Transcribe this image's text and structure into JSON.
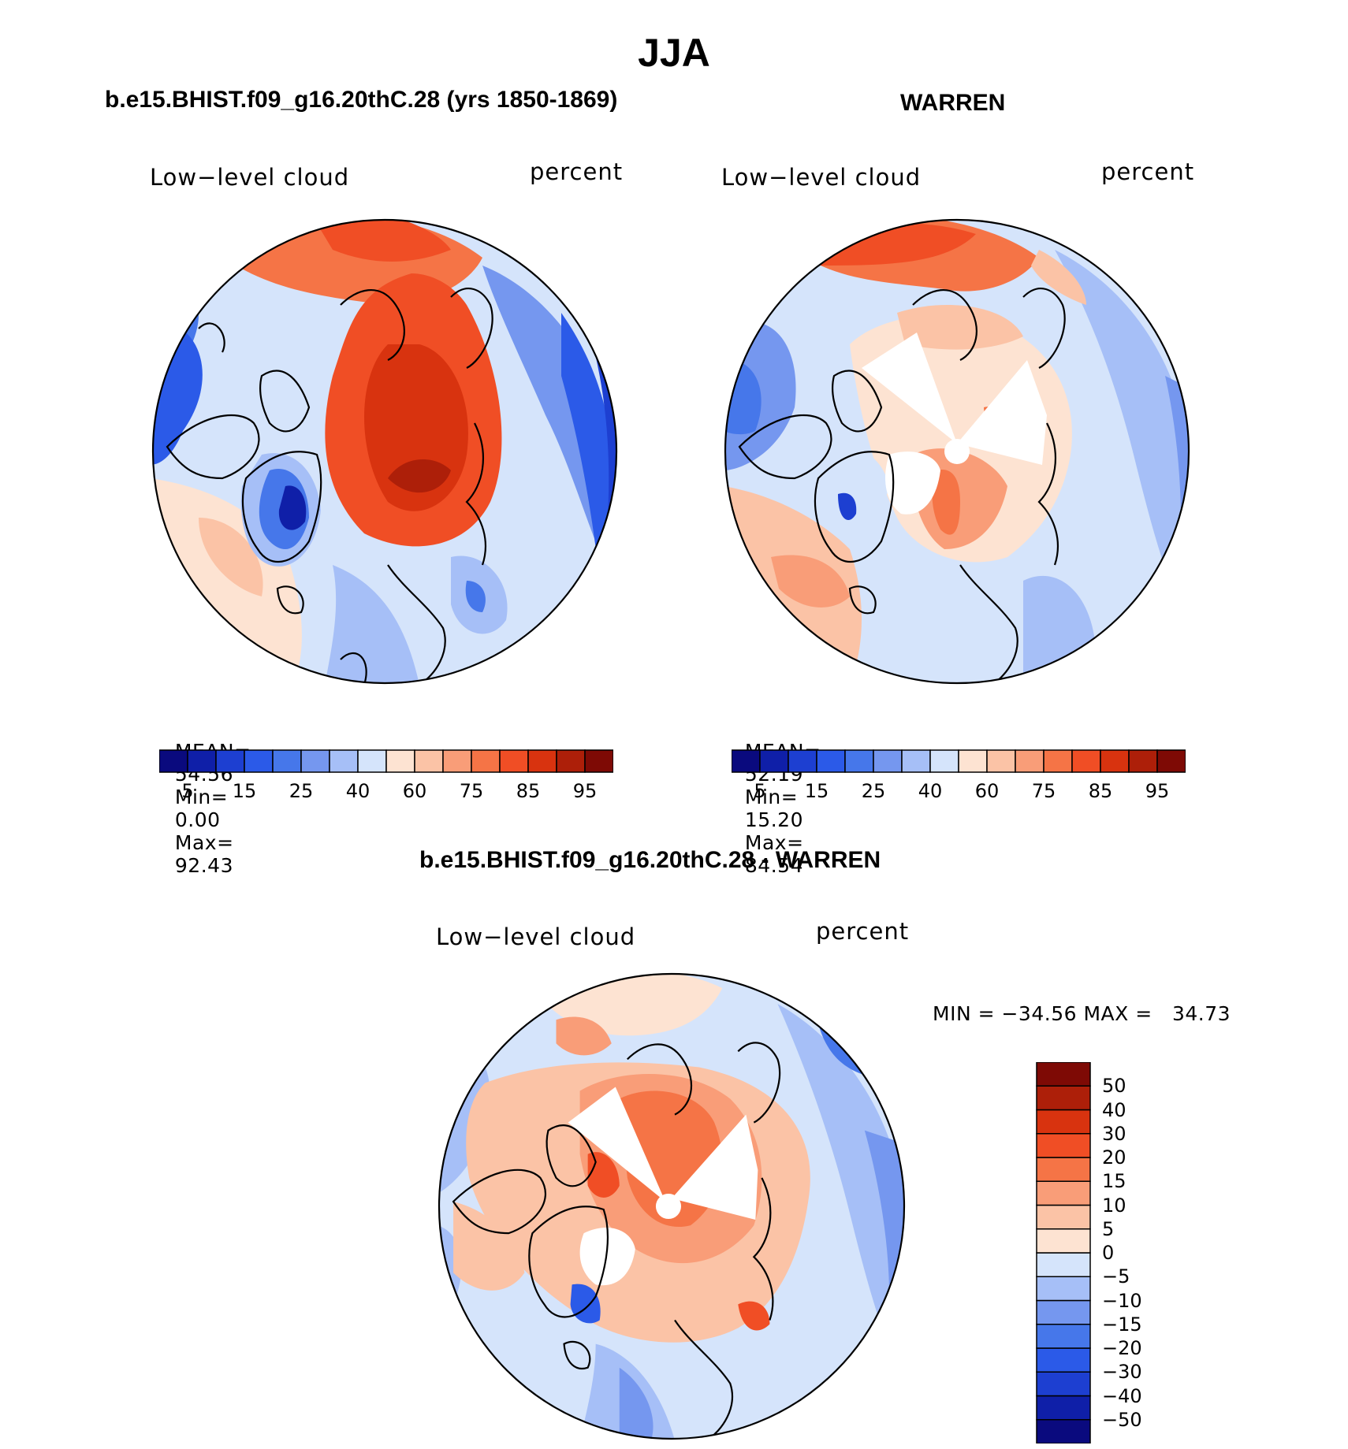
{
  "figure": {
    "main_title": "JJA"
  },
  "panels": [
    {
      "id": "model",
      "title": "b.e15.BHIST.f09_g16.20thC.28 (yrs 1850-1869)",
      "left_label": "Low−level cloud",
      "right_label": "percent",
      "stats": {
        "mean_label": "MEAN=",
        "mean": "54.56",
        "min_label": "Min=",
        "min": "0.00",
        "max_label": "Max=",
        "max": "92.43"
      }
    },
    {
      "id": "obs",
      "title": "WARREN",
      "left_label": "Low−level cloud",
      "right_label": "percent",
      "stats": {
        "mean_label": "MEAN=",
        "mean": "52.19",
        "min_label": "Min=",
        "min": "15.20",
        "max_label": "Max=",
        "max": "84.54"
      }
    },
    {
      "id": "diff",
      "title": "b.e15.BHIST.f09_g16.20thC.28 - WARREN",
      "left_label": "Low−level cloud",
      "right_label": "percent",
      "stats": {
        "text": "MIN = −34.56 MAX =   34.73"
      }
    }
  ],
  "colorbars": {
    "absolute": {
      "colors": [
        "#0a0a7e",
        "#0f1fa8",
        "#1d3fd1",
        "#2b5ae8",
        "#4677ea",
        "#7597ef",
        "#a6bff7",
        "#d5e4fb",
        "#fde3d2",
        "#fbc3a6",
        "#f99d78",
        "#f57446",
        "#f04e25",
        "#d8330f",
        "#ad1f09",
        "#7e0a05"
      ],
      "ticks": [
        "5",
        "15",
        "25",
        "40",
        "60",
        "75",
        "85",
        "95"
      ]
    },
    "difference": {
      "colors": [
        "#0a0a7e",
        "#0f1fa8",
        "#1d3fd1",
        "#2b5ae8",
        "#4677ea",
        "#7597ef",
        "#a6bff7",
        "#d5e4fb",
        "#fde3d2",
        "#fbc3a6",
        "#f99d78",
        "#f57446",
        "#f04e25",
        "#d8330f",
        "#ad1f09",
        "#7e0a05"
      ],
      "ticks": [
        "50",
        "40",
        "30",
        "20",
        "15",
        "10",
        "5",
        "0",
        "−5",
        "−10",
        "−15",
        "−20",
        "−30",
        "−40",
        "−50"
      ]
    }
  }
}
